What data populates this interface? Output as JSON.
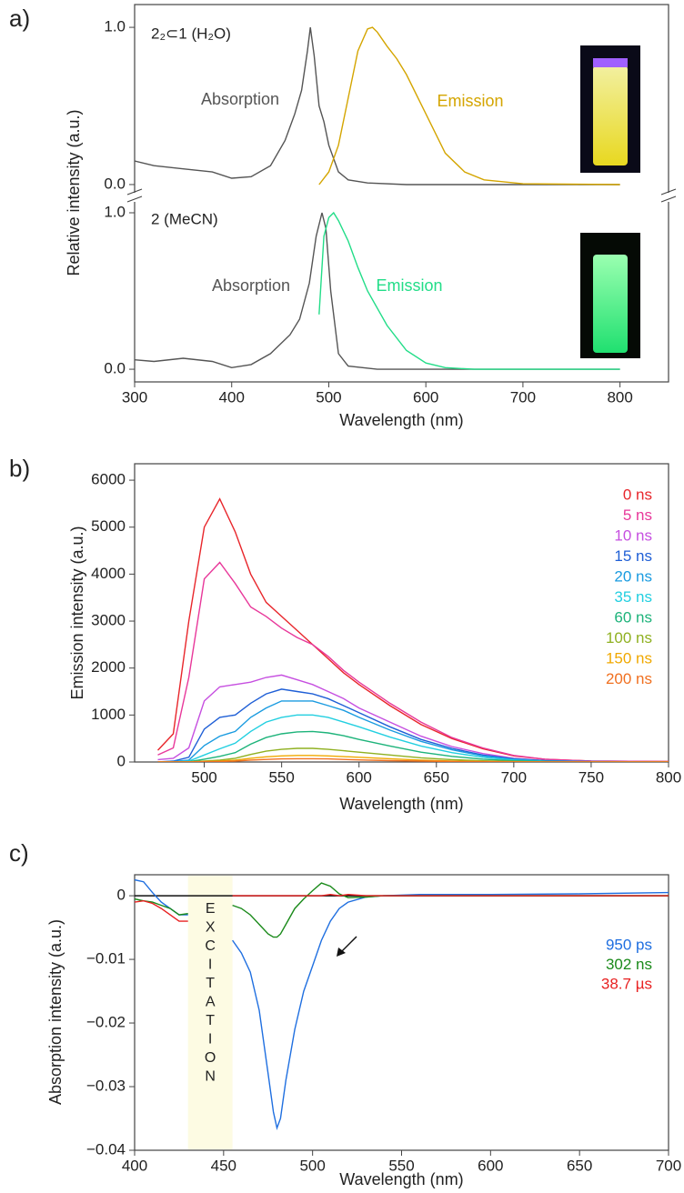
{
  "chart_data": [
    {
      "type": "line",
      "panel_label": "a)",
      "title": "2₂⊂1 (H₂O)",
      "ylabel": "Relative intensity (a.u.)",
      "xlim": [
        300,
        850
      ],
      "ylim": [
        -0.087,
        1.145
      ],
      "yticks": [
        {
          "value": 1,
          "label": "1.0"
        },
        {
          "value": 0,
          "label": "0.0"
        }
      ],
      "series": [
        {
          "name": "Absorption",
          "color": "#555555",
          "x": [
            300,
            320,
            350,
            380,
            400,
            420,
            440,
            455,
            465,
            472,
            478,
            481,
            485,
            490,
            495,
            500,
            510,
            520,
            540,
            580,
            650,
            800
          ],
          "values": [
            0.15,
            0.12,
            0.1,
            0.08,
            0.04,
            0.05,
            0.12,
            0.28,
            0.45,
            0.6,
            0.85,
            1.0,
            0.82,
            0.5,
            0.4,
            0.25,
            0.08,
            0.03,
            0.01,
            0,
            0,
            0
          ]
        },
        {
          "name": "Emission",
          "color": "#d4a500",
          "x": [
            490,
            500,
            510,
            520,
            530,
            540,
            545,
            550,
            560,
            570,
            580,
            600,
            620,
            640,
            660,
            700,
            800
          ],
          "values": [
            0,
            0.08,
            0.25,
            0.55,
            0.85,
            0.99,
            1.0,
            0.97,
            0.88,
            0.8,
            0.7,
            0.45,
            0.2,
            0.08,
            0.03,
            0.005,
            0
          ]
        }
      ]
    },
    {
      "type": "line",
      "title": "2 (MeCN)",
      "xlabel": "Wavelength (nm)",
      "xlim": [
        300,
        850
      ],
      "xticks": [
        300,
        400,
        500,
        600,
        700,
        800
      ],
      "ylim": [
        -0.081,
        1.093
      ],
      "yticks": [
        {
          "value": 1,
          "label": "1.0"
        },
        {
          "value": 0,
          "label": "0.0"
        }
      ],
      "series": [
        {
          "name": "Absorption",
          "color": "#555555",
          "x": [
            300,
            320,
            350,
            380,
            400,
            420,
            440,
            460,
            470,
            480,
            487,
            493,
            497,
            502,
            510,
            520,
            550,
            600,
            800
          ],
          "values": [
            0.06,
            0.05,
            0.07,
            0.05,
            0.01,
            0.03,
            0.1,
            0.22,
            0.32,
            0.55,
            0.85,
            1.0,
            0.9,
            0.5,
            0.1,
            0.02,
            0,
            0,
            0
          ]
        },
        {
          "name": "Emission",
          "color": "#22dd88",
          "x": [
            490,
            495,
            500,
            505,
            510,
            520,
            530,
            540,
            560,
            580,
            600,
            620,
            650,
            700,
            800
          ],
          "values": [
            0.35,
            0.85,
            0.97,
            1.0,
            0.95,
            0.82,
            0.65,
            0.5,
            0.28,
            0.12,
            0.04,
            0.01,
            0,
            0,
            0
          ]
        }
      ]
    },
    {
      "type": "line",
      "panel_label": "b)",
      "ylabel": "Emission intensity (a.u.)",
      "xlabel": "Wavelength (nm)",
      "xlim": [
        455,
        800
      ],
      "xticks": [
        500,
        550,
        600,
        650,
        700,
        750,
        800
      ],
      "ylim": [
        0,
        6350
      ],
      "yticks": [
        0,
        1000,
        2000,
        3000,
        4000,
        5000,
        6000
      ],
      "x": [
        470,
        480,
        490,
        500,
        510,
        520,
        530,
        540,
        550,
        560,
        570,
        580,
        590,
        600,
        620,
        640,
        660,
        680,
        700,
        720,
        750,
        800
      ],
      "series": [
        {
          "name": "0 ns",
          "color": "#e8262b",
          "values": [
            250,
            600,
            3000,
            5000,
            5600,
            4900,
            4000,
            3400,
            3100,
            2800,
            2500,
            2200,
            1900,
            1650,
            1200,
            800,
            500,
            280,
            130,
            60,
            20,
            10
          ]
        },
        {
          "name": "5 ns",
          "color": "#e8389a",
          "values": [
            150,
            300,
            1800,
            3900,
            4250,
            3800,
            3300,
            3100,
            2850,
            2650,
            2500,
            2250,
            1950,
            1700,
            1250,
            850,
            520,
            300,
            140,
            60,
            20,
            10
          ]
        },
        {
          "name": "10 ns",
          "color": "#c64fe0",
          "values": [
            50,
            80,
            300,
            1300,
            1600,
            1650,
            1700,
            1800,
            1850,
            1750,
            1650,
            1500,
            1350,
            1150,
            850,
            550,
            330,
            180,
            80,
            30,
            10,
            5
          ]
        },
        {
          "name": "15 ns",
          "color": "#1f5fd6",
          "values": [
            0,
            20,
            100,
            700,
            950,
            1000,
            1250,
            1450,
            1550,
            1500,
            1450,
            1350,
            1200,
            1050,
            750,
            480,
            290,
            150,
            70,
            30,
            10,
            0
          ]
        },
        {
          "name": "20 ns",
          "color": "#1a9be0",
          "values": [
            0,
            10,
            40,
            350,
            550,
            650,
            950,
            1150,
            1300,
            1300,
            1300,
            1200,
            1100,
            950,
            680,
            440,
            260,
            130,
            60,
            20,
            5,
            0
          ]
        },
        {
          "name": "35 ns",
          "color": "#22cfe0",
          "values": [
            0,
            0,
            20,
            150,
            280,
            400,
            650,
            850,
            950,
            1000,
            1000,
            950,
            850,
            750,
            530,
            340,
            200,
            100,
            40,
            15,
            5,
            0
          ]
        },
        {
          "name": "60 ns",
          "color": "#1db37a",
          "values": [
            0,
            0,
            5,
            60,
            120,
            200,
            380,
            520,
            600,
            640,
            650,
            620,
            560,
            480,
            340,
            210,
            120,
            60,
            25,
            10,
            0,
            0
          ]
        },
        {
          "name": "100 ns",
          "color": "#8fb020",
          "values": [
            0,
            0,
            0,
            20,
            40,
            80,
            160,
            230,
            270,
            290,
            290,
            270,
            240,
            210,
            150,
            90,
            50,
            25,
            10,
            0,
            0,
            0
          ]
        },
        {
          "name": "150 ns",
          "color": "#f0a800",
          "values": [
            0,
            0,
            0,
            10,
            20,
            40,
            80,
            110,
            130,
            140,
            140,
            130,
            115,
            100,
            70,
            40,
            20,
            10,
            5,
            0,
            0,
            0
          ]
        },
        {
          "name": "200 ns",
          "color": "#f07020",
          "values": [
            0,
            0,
            0,
            5,
            10,
            20,
            40,
            55,
            65,
            70,
            70,
            65,
            55,
            45,
            30,
            20,
            10,
            5,
            0,
            0,
            0,
            0
          ]
        }
      ]
    },
    {
      "type": "line",
      "panel_label": "c)",
      "ylabel": "Absorption intensity (a.u.)",
      "xlabel": "Wavelength (nm)",
      "xlim": [
        400,
        700
      ],
      "xticks": [
        400,
        450,
        500,
        550,
        600,
        650,
        700
      ],
      "ylim": [
        -0.04,
        0.0033
      ],
      "yticks": [
        0,
        {
          "value": -0.01,
          "label": "−0.01"
        },
        {
          "value": -0.02,
          "label": "−0.02"
        },
        {
          "value": -0.03,
          "label": "−0.03"
        },
        {
          "value": -0.04,
          "label": "−0.04"
        }
      ],
      "zero_line": true,
      "excitation_label": "EXCITATION",
      "excitation_range": [
        430,
        455
      ],
      "x": [
        400,
        405,
        410,
        415,
        420,
        425,
        430,
        443,
        455,
        460,
        465,
        470,
        475,
        478,
        480,
        482,
        485,
        490,
        495,
        500,
        505,
        510,
        515,
        520,
        530,
        540,
        560,
        600,
        650,
        700
      ],
      "series": [
        {
          "name": "950 ps",
          "color": "#1f6fe0",
          "values": [
            0.0025,
            0.0022,
            0.0005,
            -0.001,
            -0.002,
            -0.003,
            -0.003,
            null,
            -0.007,
            -0.009,
            -0.012,
            -0.018,
            -0.028,
            -0.034,
            -0.0365,
            -0.035,
            -0.029,
            -0.021,
            -0.015,
            -0.011,
            -0.007,
            -0.004,
            -0.002,
            -0.001,
            -0.0002,
            0,
            0.0002,
            0.0002,
            0.0003,
            0.0005
          ]
        },
        {
          "name": "302 ns",
          "color": "#1a8a1a",
          "values": [
            -0.0005,
            -0.0008,
            -0.001,
            -0.0015,
            -0.002,
            -0.003,
            -0.0028,
            null,
            -0.0015,
            -0.002,
            -0.003,
            -0.0045,
            -0.006,
            -0.0065,
            -0.0065,
            -0.006,
            -0.0045,
            -0.002,
            -0.0005,
            0.0008,
            0.002,
            0.0015,
            0.0003,
            -0.0003,
            -0.0002,
            0,
            0,
            0,
            0,
            0
          ]
        },
        {
          "name": "38.7 µs",
          "color": "#e82020",
          "values": [
            -0.001,
            -0.0008,
            -0.0012,
            -0.002,
            -0.003,
            -0.004,
            -0.004,
            null,
            0,
            0,
            0,
            0,
            0,
            0,
            0,
            0,
            0,
            0,
            0,
            0,
            0,
            0.0002,
            0,
            0.0002,
            0,
            0,
            0,
            0,
            0,
            0
          ]
        }
      ]
    }
  ]
}
